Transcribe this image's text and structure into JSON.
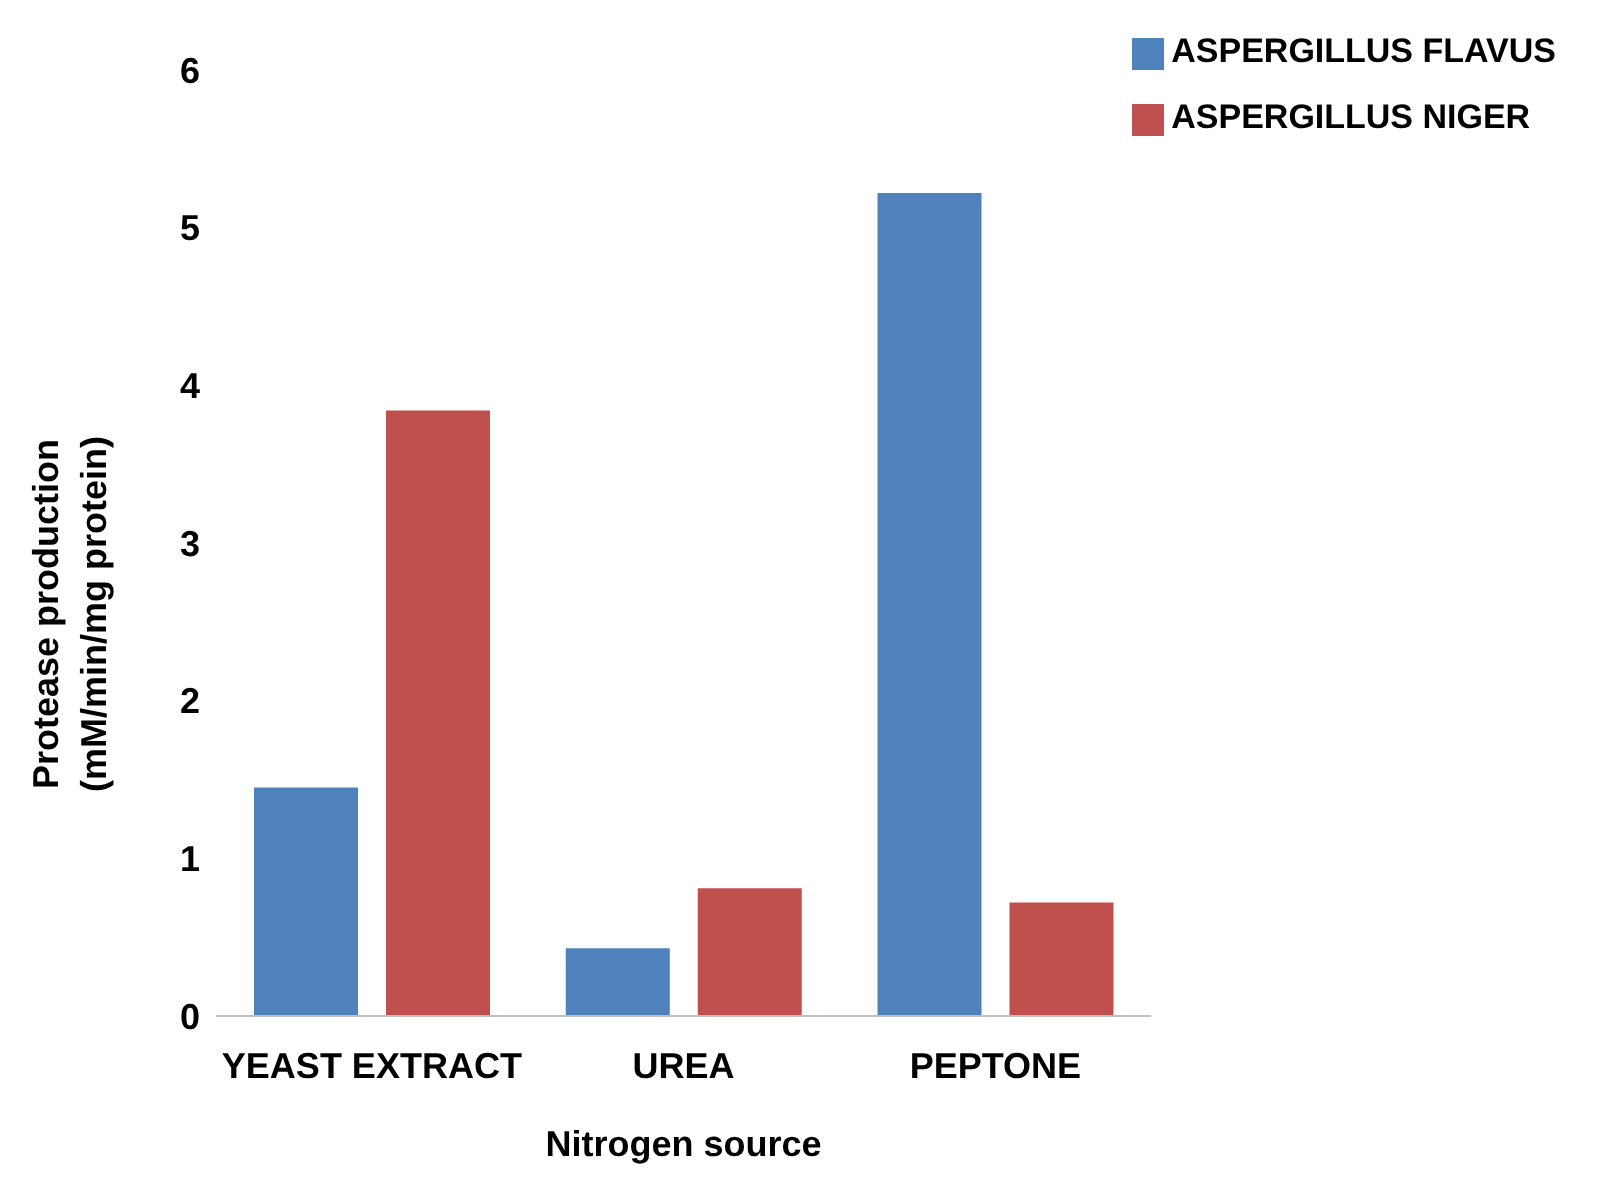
{
  "chart_data": {
    "type": "bar",
    "xlabel": "Nitrogen source",
    "ylabel": "Protease production (mM/min/mg protein)",
    "categories": [
      "YEAST EXTRACT",
      "UREA",
      "PEPTONE"
    ],
    "series": [
      {
        "name": "ASPERGILLUS FLAVUS",
        "color": "#4f81bd",
        "values": [
          1.45,
          0.43,
          5.22
        ]
      },
      {
        "name": "ASPERGILLUS NIGER",
        "color": "#c0504d",
        "values": [
          3.84,
          0.81,
          0.72
        ]
      }
    ],
    "ylim": [
      0,
      6
    ],
    "yticks": [
      0,
      1,
      2,
      3,
      4,
      5,
      6
    ],
    "grid": false,
    "legend": "top right"
  }
}
